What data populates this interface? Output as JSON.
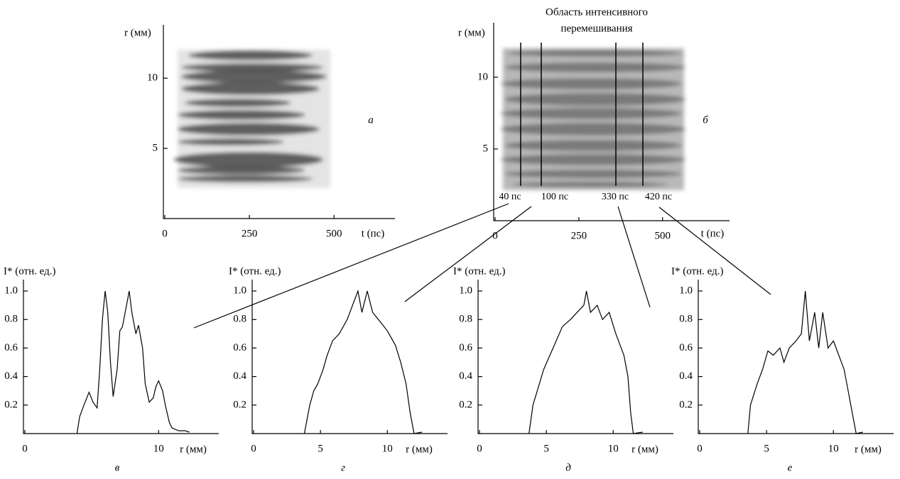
{
  "chart_data": [
    {
      "type": "streak",
      "ylabel": "r (мм)",
      "xlabel": "t (пс)",
      "panel": "а",
      "xlim": [
        0,
        680
      ],
      "xticks": [
        0,
        250,
        500
      ],
      "ylim": [
        0,
        13.8
      ],
      "yticks": [
        5,
        10
      ]
    },
    {
      "type": "streak",
      "ylabel": "r (мм)",
      "xlabel": "t (пс)",
      "panel": "б",
      "annotation": [
        "Область интенсивного",
        "перемешивания"
      ],
      "time_labels": [
        "40 пс",
        "100 пс",
        "330 пс",
        "420 пс"
      ],
      "xlim": [
        0,
        700
      ],
      "xticks": [
        0,
        250,
        500
      ],
      "ylim": [
        0,
        13.8
      ],
      "yticks": [
        5,
        10
      ]
    },
    {
      "type": "line",
      "ylabel": "I* (отн. ед.)",
      "xlabel": "r (мм)",
      "panel": "в",
      "color": "#000000",
      "x": [
        3.9,
        4.1,
        4.5,
        4.8,
        5.1,
        5.4,
        5.6,
        5.8,
        6.0,
        6.2,
        6.4,
        6.6,
        6.9,
        7.1,
        7.3,
        7.6,
        7.8,
        8.0,
        8.3,
        8.5,
        8.8,
        9.0,
        9.3,
        9.6,
        9.8,
        10.0,
        10.3,
        10.5,
        10.8,
        11.0,
        11.5,
        12.0,
        12.3
      ],
      "values": [
        0,
        0.12,
        0.22,
        0.29,
        0.22,
        0.18,
        0.45,
        0.8,
        1.0,
        0.85,
        0.5,
        0.26,
        0.45,
        0.72,
        0.75,
        0.9,
        1.0,
        0.85,
        0.7,
        0.76,
        0.6,
        0.35,
        0.22,
        0.25,
        0.33,
        0.37,
        0.3,
        0.2,
        0.08,
        0.04,
        0.02,
        0.02,
        0.01
      ],
      "xlim": [
        0,
        14.5
      ],
      "xticks": [
        0,
        10
      ],
      "ylim": [
        0,
        1.08
      ],
      "yticks": [
        0.2,
        0.4,
        0.6,
        0.8,
        {
          "value": 1,
          "label": "1.0"
        }
      ]
    },
    {
      "type": "line",
      "ylabel": "I* (отн. ед.)",
      "xlabel": "r (мм)",
      "panel": "г",
      "color": "#000000",
      "x": [
        3.8,
        4.2,
        4.5,
        4.8,
        5.2,
        5.5,
        5.9,
        6.4,
        7.0,
        7.4,
        7.8,
        8.1,
        8.5,
        8.9,
        9.5,
        10.0,
        10.6,
        11.0,
        11.4,
        11.7,
        12.0,
        12.6
      ],
      "values": [
        0,
        0.2,
        0.3,
        0.35,
        0.45,
        0.55,
        0.65,
        0.7,
        0.8,
        0.9,
        1.0,
        0.85,
        1.0,
        0.85,
        0.78,
        0.72,
        0.62,
        0.5,
        0.35,
        0.15,
        0,
        0.01
      ],
      "xlim": [
        0,
        14.5
      ],
      "xticks": [
        0,
        5,
        10
      ],
      "ylim": [
        0,
        1.08
      ],
      "yticks": [
        0.2,
        0.4,
        0.6,
        0.8,
        {
          "value": 1,
          "label": "1.0"
        }
      ]
    },
    {
      "type": "line",
      "ylabel": "I* (отн. ед.)",
      "xlabel": "r (мм)",
      "panel": "д",
      "color": "#000000",
      "x": [
        3.7,
        4.0,
        4.8,
        5.5,
        6.2,
        6.8,
        7.3,
        7.8,
        8.0,
        8.3,
        8.8,
        9.2,
        9.7,
        10.2,
        10.8,
        11.1,
        11.3,
        11.5,
        12.2
      ],
      "values": [
        0,
        0.2,
        0.45,
        0.6,
        0.75,
        0.8,
        0.85,
        0.9,
        1.0,
        0.85,
        0.9,
        0.8,
        0.85,
        0.7,
        0.55,
        0.4,
        0.15,
        0,
        0.01
      ],
      "xlim": [
        0,
        14.5
      ],
      "xticks": [
        0,
        5,
        10
      ],
      "ylim": [
        0,
        1.08
      ],
      "yticks": [
        0.2,
        0.4,
        0.6,
        0.8,
        {
          "value": 1,
          "label": "1.0"
        }
      ]
    },
    {
      "type": "line",
      "ylabel": "I* (отн. ед.)",
      "xlabel": "r (мм)",
      "panel": "е",
      "color": "#000000",
      "x": [
        3.6,
        3.8,
        4.3,
        4.7,
        5.1,
        5.5,
        6.0,
        6.3,
        6.7,
        7.2,
        7.6,
        7.9,
        8.2,
        8.6,
        8.9,
        9.2,
        9.6,
        10.0,
        10.4,
        10.8,
        11.1,
        11.4,
        11.7,
        12.2
      ],
      "values": [
        0,
        0.2,
        0.35,
        0.45,
        0.58,
        0.55,
        0.6,
        0.5,
        0.6,
        0.65,
        0.7,
        1.0,
        0.65,
        0.85,
        0.6,
        0.85,
        0.6,
        0.65,
        0.55,
        0.45,
        0.3,
        0.15,
        0,
        0.01
      ],
      "xlim": [
        0,
        14.5
      ],
      "xticks": [
        0,
        5,
        10
      ],
      "ylim": [
        0,
        1.08
      ],
      "yticks": [
        0.2,
        0.4,
        0.6,
        0.8,
        {
          "value": 1,
          "label": "1.0"
        }
      ]
    }
  ]
}
